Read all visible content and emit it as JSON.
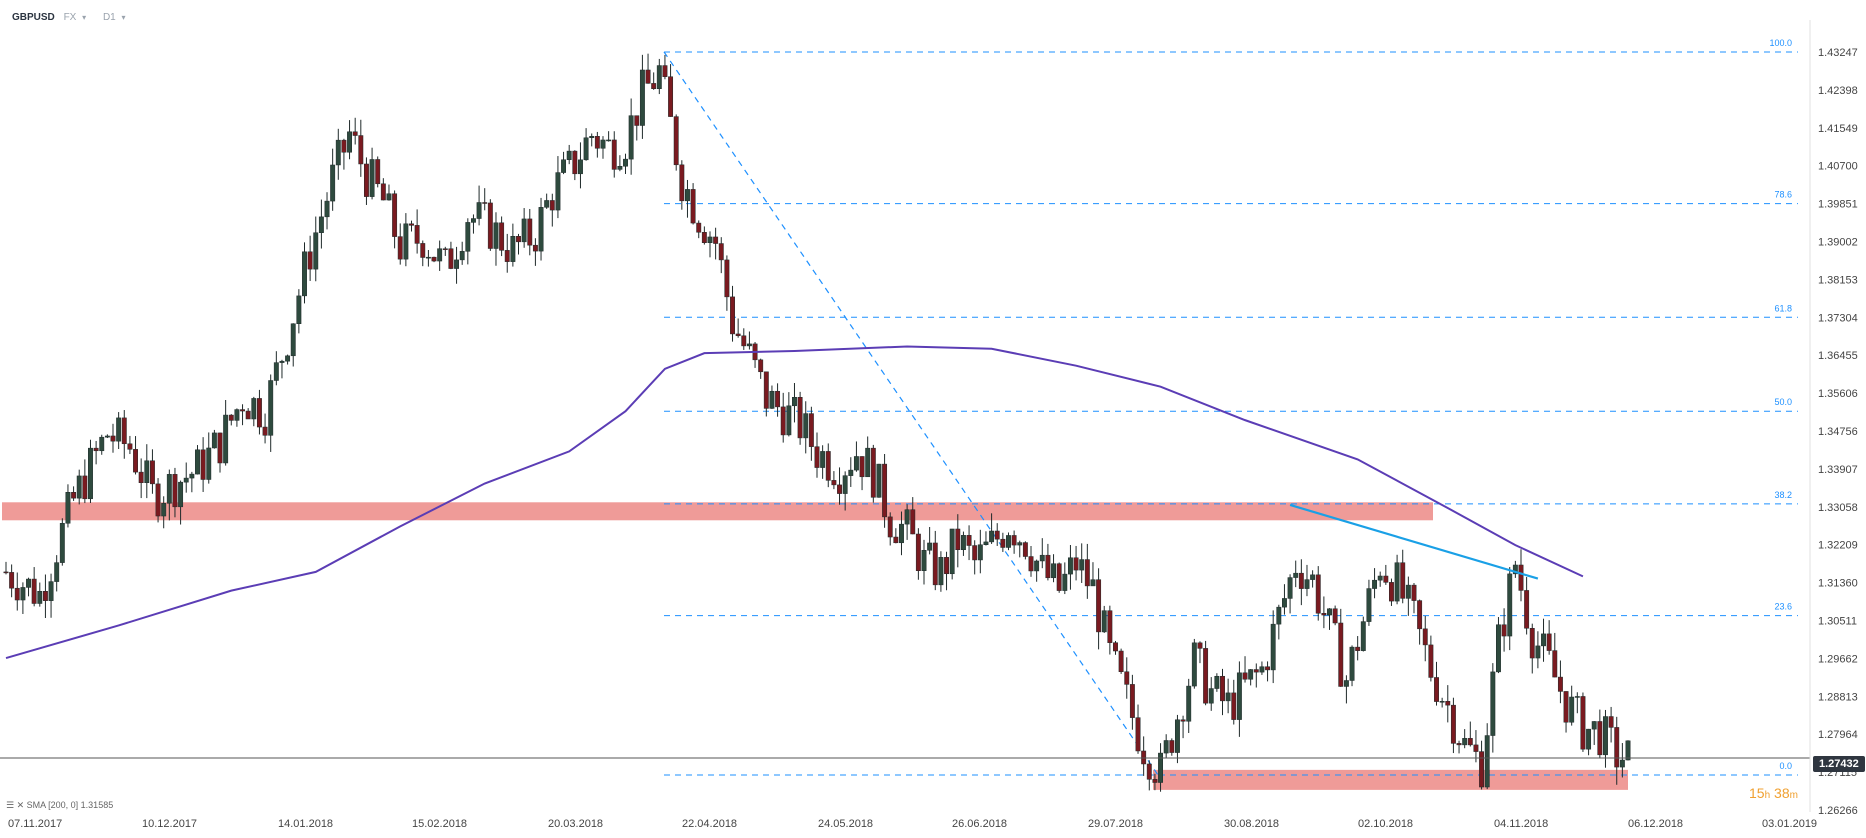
{
  "header": {
    "symbol": "GBPUSD",
    "market": "FX",
    "timeframe": "D1"
  },
  "indicator_legend": {
    "icon": "indicator-icon",
    "label": "SMA [200, 0] 1.31585"
  },
  "countdown": {
    "hours": "15",
    "h_unit": "h",
    "minutes": "38",
    "m_unit": "m"
  },
  "colors": {
    "bull": "#2e4a3e",
    "bear": "#7a1a20",
    "sma": "#5b3db5",
    "fib": "#1e90ff",
    "zone": "#ec8a86",
    "trendline": "#1aa0e6",
    "price_line": "#555555",
    "countdown": "#f0a030"
  },
  "chart_data": {
    "type": "candlestick",
    "title": "",
    "xlabel": "",
    "ylabel": "",
    "ylim": [
      1.2627,
      1.4375
    ],
    "yticks": [
      "1.43247",
      "1.42398",
      "1.41549",
      "1.40700",
      "1.39851",
      "1.39002",
      "1.38153",
      "1.37304",
      "1.36455",
      "1.35606",
      "1.34756",
      "1.33907",
      "1.33058",
      "1.32209",
      "1.31360",
      "1.30511",
      "1.29662",
      "1.28813",
      "1.27964",
      "1.27115",
      "1.26266"
    ],
    "xticks": [
      "07.11.2017",
      "10.12.2017",
      "14.01.2018",
      "15.02.2018",
      "20.03.2018",
      "22.04.2018",
      "24.05.2018",
      "26.06.2018",
      "29.07.2018",
      "30.08.2018",
      "02.10.2018",
      "04.11.2018",
      "06.12.2018",
      "03.01.2019"
    ],
    "last_price": "1.27432",
    "price_path": [
      [
        0,
        1.316
      ],
      [
        6,
        1.311
      ],
      [
        12,
        1.332
      ],
      [
        18,
        1.347
      ],
      [
        22,
        1.344
      ],
      [
        26,
        1.333
      ],
      [
        30,
        1.336
      ],
      [
        34,
        1.339
      ],
      [
        38,
        1.345
      ],
      [
        42,
        1.355
      ],
      [
        46,
        1.352
      ],
      [
        50,
        1.369
      ],
      [
        54,
        1.388
      ],
      [
        58,
        1.404
      ],
      [
        61,
        1.414
      ],
      [
        64,
        1.405
      ],
      [
        67,
        1.399
      ],
      [
        70,
        1.389
      ],
      [
        74,
        1.391
      ],
      [
        78,
        1.384
      ],
      [
        82,
        1.396
      ],
      [
        86,
        1.393
      ],
      [
        90,
        1.388
      ],
      [
        94,
        1.392
      ],
      [
        97,
        1.401
      ],
      [
        100,
        1.406
      ],
      [
        104,
        1.414
      ],
      [
        107,
        1.411
      ],
      [
        110,
        1.413
      ],
      [
        113,
        1.423
      ],
      [
        116,
        1.428
      ],
      [
        120,
        1.404
      ],
      [
        123,
        1.396
      ],
      [
        126,
        1.39
      ],
      [
        129,
        1.372
      ],
      [
        132,
        1.364
      ],
      [
        135,
        1.355
      ],
      [
        138,
        1.352
      ],
      [
        141,
        1.349
      ],
      [
        144,
        1.343
      ],
      [
        148,
        1.339
      ],
      [
        151,
        1.343
      ],
      [
        154,
        1.338
      ],
      [
        157,
        1.328
      ],
      [
        160,
        1.325
      ],
      [
        163,
        1.318
      ],
      [
        166,
        1.316
      ],
      [
        169,
        1.323
      ],
      [
        172,
        1.318
      ],
      [
        175,
        1.322
      ],
      [
        178,
        1.327
      ],
      [
        181,
        1.323
      ],
      [
        184,
        1.316
      ],
      [
        187,
        1.312
      ],
      [
        190,
        1.318
      ],
      [
        193,
        1.312
      ],
      [
        196,
        1.297
      ],
      [
        199,
        1.287
      ],
      [
        202,
        1.277
      ],
      [
        205,
        1.271
      ],
      [
        208,
        1.284
      ],
      [
        211,
        1.296
      ],
      [
        214,
        1.289
      ],
      [
        217,
        1.286
      ],
      [
        220,
        1.29
      ],
      [
        223,
        1.294
      ],
      [
        226,
        1.306
      ],
      [
        229,
        1.318
      ],
      [
        232,
        1.314
      ],
      [
        235,
        1.303
      ],
      [
        238,
        1.292
      ],
      [
        241,
        1.305
      ],
      [
        244,
        1.318
      ],
      [
        247,
        1.313
      ],
      [
        250,
        1.305
      ],
      [
        253,
        1.294
      ],
      [
        256,
        1.286
      ],
      [
        259,
        1.277
      ],
      [
        262,
        1.273
      ],
      [
        265,
        1.3
      ],
      [
        268,
        1.318
      ],
      [
        271,
        1.302
      ],
      [
        274,
        1.295
      ],
      [
        277,
        1.287
      ],
      [
        280,
        1.281
      ],
      [
        283,
        1.28
      ],
      [
        286,
        1.275
      ],
      [
        288,
        1.27432
      ]
    ],
    "sma200": [
      [
        0,
        1.2967
      ],
      [
        20,
        1.304
      ],
      [
        40,
        1.3118
      ],
      [
        55,
        1.316
      ],
      [
        70,
        1.3262
      ],
      [
        85,
        1.3358
      ],
      [
        100,
        1.343
      ],
      [
        110,
        1.352
      ],
      [
        117,
        1.3615
      ],
      [
        124,
        1.365
      ],
      [
        140,
        1.3655
      ],
      [
        160,
        1.3665
      ],
      [
        175,
        1.366
      ],
      [
        190,
        1.3622
      ],
      [
        205,
        1.3575
      ],
      [
        220,
        1.35
      ],
      [
        240,
        1.3412
      ],
      [
        255,
        1.331
      ],
      [
        268,
        1.322
      ],
      [
        280,
        1.315
      ]
    ],
    "fibonacci": [
      {
        "label": "100.0",
        "value": 1.43247
      },
      {
        "label": "78.6",
        "value": 1.39851
      },
      {
        "label": "61.8",
        "value": 1.37304
      },
      {
        "label": "50.0",
        "value": 1.352
      },
      {
        "label": "38.2",
        "value": 1.33125
      },
      {
        "label": "23.6",
        "value": 1.3062
      },
      {
        "label": "0.0",
        "value": 1.2705
      }
    ],
    "fib_anchor": {
      "from": [
        116,
        1.4325
      ],
      "to": [
        205,
        1.2705
      ]
    },
    "resistance_zone": {
      "x_from": 0,
      "x_to": 248,
      "y_low": 1.327,
      "y_high": 1.3298
    },
    "support_zone": {
      "x_from": 200,
      "x_to": 282,
      "y_low": 1.265,
      "y_high": 1.2712
    },
    "trendlines": [
      {
        "from": [
          228,
          1.331
        ],
        "to": [
          272,
          1.3145
        ],
        "color_key": "trendline"
      }
    ]
  }
}
